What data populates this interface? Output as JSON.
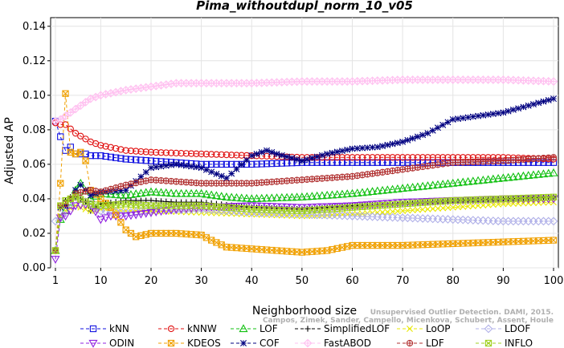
{
  "chart_data": {
    "type": "line",
    "title": "Pima_withoutdupl_norm_10_v05",
    "xlabel": "Neighborhood size",
    "ylabel": "Adjusted AP",
    "xlim": [
      1,
      100
    ],
    "ylim": [
      0,
      0.145
    ],
    "xticks": [
      1,
      10,
      20,
      30,
      40,
      50,
      60,
      70,
      80,
      90,
      100
    ],
    "yticks": [
      "0.00",
      "0.02",
      "0.04",
      "0.06",
      "0.08",
      "0.10",
      "0.12",
      "0.14"
    ],
    "legend_placement": "bottom",
    "watermark": [
      "Unsupervised Outlier Detection. DAMI, 2015.",
      "Campos, Zimek, Sander, Campello, Micenkova, Schubert, Assent, Houle"
    ],
    "series": [
      {
        "name": "kNN",
        "color": "#1010e0",
        "marker": "square",
        "dash": "4,3",
        "points": [
          [
            1,
            0.085
          ],
          [
            2,
            0.076
          ],
          [
            3,
            0.068
          ],
          [
            4,
            0.07
          ],
          [
            5,
            0.066
          ],
          [
            6,
            0.066
          ],
          [
            7,
            0.066
          ],
          [
            8,
            0.065
          ],
          [
            10,
            0.065
          ],
          [
            15,
            0.063
          ],
          [
            20,
            0.062
          ],
          [
            30,
            0.06
          ],
          [
            40,
            0.06
          ],
          [
            50,
            0.061
          ],
          [
            60,
            0.061
          ],
          [
            70,
            0.061
          ],
          [
            80,
            0.061
          ],
          [
            90,
            0.061
          ],
          [
            100,
            0.061
          ]
        ]
      },
      {
        "name": "kNNW",
        "color": "#e01010",
        "marker": "circle",
        "dash": "4,3",
        "points": [
          [
            1,
            0.084
          ],
          [
            2,
            0.083
          ],
          [
            3,
            0.083
          ],
          [
            5,
            0.078
          ],
          [
            8,
            0.073
          ],
          [
            10,
            0.071
          ],
          [
            15,
            0.068
          ],
          [
            20,
            0.067
          ],
          [
            30,
            0.066
          ],
          [
            40,
            0.065
          ],
          [
            50,
            0.064
          ],
          [
            60,
            0.064
          ],
          [
            70,
            0.064
          ],
          [
            80,
            0.064
          ],
          [
            90,
            0.064
          ],
          [
            100,
            0.063
          ]
        ]
      },
      {
        "name": "LOF",
        "color": "#10c010",
        "marker": "triangle-up",
        "dash": "4,3",
        "points": [
          [
            1,
            0.01
          ],
          [
            2,
            0.028
          ],
          [
            3,
            0.033
          ],
          [
            4,
            0.038
          ],
          [
            5,
            0.045
          ],
          [
            6,
            0.049
          ],
          [
            8,
            0.04
          ],
          [
            10,
            0.043
          ],
          [
            15,
            0.042
          ],
          [
            20,
            0.044
          ],
          [
            25,
            0.043
          ],
          [
            30,
            0.043
          ],
          [
            35,
            0.041
          ],
          [
            40,
            0.04
          ],
          [
            50,
            0.041
          ],
          [
            60,
            0.043
          ],
          [
            70,
            0.046
          ],
          [
            80,
            0.049
          ],
          [
            90,
            0.052
          ],
          [
            100,
            0.055
          ]
        ]
      },
      {
        "name": "SimplifiedLOF",
        "color": "#000000",
        "marker": "plus",
        "dash": "4,3",
        "points": [
          [
            1,
            0.01
          ],
          [
            2,
            0.035
          ],
          [
            3,
            0.039
          ],
          [
            4,
            0.041
          ],
          [
            5,
            0.041
          ],
          [
            6,
            0.04
          ],
          [
            7,
            0.038
          ],
          [
            8,
            0.033
          ],
          [
            10,
            0.037
          ],
          [
            15,
            0.039
          ],
          [
            20,
            0.039
          ],
          [
            25,
            0.038
          ],
          [
            30,
            0.038
          ],
          [
            40,
            0.035
          ],
          [
            50,
            0.034
          ],
          [
            60,
            0.036
          ],
          [
            70,
            0.037
          ],
          [
            80,
            0.039
          ],
          [
            90,
            0.04
          ],
          [
            100,
            0.041
          ]
        ]
      },
      {
        "name": "LoOP",
        "color": "#e8e800",
        "marker": "x",
        "dash": "4,3",
        "points": [
          [
            1,
            0.01
          ],
          [
            2,
            0.03
          ],
          [
            3,
            0.033
          ],
          [
            5,
            0.036
          ],
          [
            8,
            0.033
          ],
          [
            10,
            0.034
          ],
          [
            15,
            0.033
          ],
          [
            20,
            0.033
          ],
          [
            30,
            0.032
          ],
          [
            40,
            0.031
          ],
          [
            50,
            0.03
          ],
          [
            60,
            0.031
          ],
          [
            70,
            0.033
          ],
          [
            80,
            0.035
          ],
          [
            90,
            0.037
          ],
          [
            100,
            0.038
          ]
        ]
      },
      {
        "name": "LDOF",
        "color": "#b0b0e8",
        "marker": "diamond",
        "dash": "4,3",
        "points": [
          [
            1,
            0.027
          ],
          [
            2,
            0.029
          ],
          [
            3,
            0.033
          ],
          [
            5,
            0.041
          ],
          [
            8,
            0.037
          ],
          [
            10,
            0.033
          ],
          [
            15,
            0.032
          ],
          [
            20,
            0.033
          ],
          [
            30,
            0.034
          ],
          [
            40,
            0.032
          ],
          [
            50,
            0.031
          ],
          [
            60,
            0.03
          ],
          [
            70,
            0.029
          ],
          [
            80,
            0.028
          ],
          [
            90,
            0.027
          ],
          [
            100,
            0.027
          ]
        ]
      },
      {
        "name": "ODIN",
        "color": "#9020e0",
        "marker": "triangle-down",
        "dash": "4,3",
        "points": [
          [
            1,
            0.005
          ],
          [
            2,
            0.029
          ],
          [
            3,
            0.03
          ],
          [
            5,
            0.036
          ],
          [
            8,
            0.037
          ],
          [
            10,
            0.028
          ],
          [
            12,
            0.03
          ],
          [
            15,
            0.03
          ],
          [
            20,
            0.032
          ],
          [
            25,
            0.034
          ],
          [
            30,
            0.035
          ],
          [
            40,
            0.036
          ],
          [
            50,
            0.035
          ],
          [
            60,
            0.036
          ],
          [
            70,
            0.038
          ],
          [
            80,
            0.039
          ],
          [
            90,
            0.04
          ],
          [
            100,
            0.04
          ]
        ]
      },
      {
        "name": "KDEOS",
        "color": "#f0a000",
        "marker": "square-x",
        "dash": "4,3",
        "points": [
          [
            1,
            0.01
          ],
          [
            2,
            0.049
          ],
          [
            3,
            0.101
          ],
          [
            4,
            0.067
          ],
          [
            5,
            0.066
          ],
          [
            6,
            0.067
          ],
          [
            7,
            0.062
          ],
          [
            8,
            0.045
          ],
          [
            10,
            0.04
          ],
          [
            12,
            0.035
          ],
          [
            15,
            0.022
          ],
          [
            17,
            0.018
          ],
          [
            20,
            0.02
          ],
          [
            22,
            0.02
          ],
          [
            25,
            0.02
          ],
          [
            30,
            0.019
          ],
          [
            32,
            0.016
          ],
          [
            35,
            0.012
          ],
          [
            40,
            0.011
          ],
          [
            45,
            0.01
          ],
          [
            50,
            0.009
          ],
          [
            55,
            0.01
          ],
          [
            60,
            0.013
          ],
          [
            70,
            0.013
          ],
          [
            80,
            0.014
          ],
          [
            90,
            0.015
          ],
          [
            100,
            0.016
          ]
        ]
      },
      {
        "name": "COF",
        "color": "#000080",
        "marker": "asterisk",
        "dash": "4,3",
        "points": [
          [
            1,
            0.01
          ],
          [
            2,
            0.035
          ],
          [
            3,
            0.036
          ],
          [
            4,
            0.04
          ],
          [
            5,
            0.045
          ],
          [
            6,
            0.048
          ],
          [
            8,
            0.042
          ],
          [
            10,
            0.044
          ],
          [
            15,
            0.045
          ],
          [
            20,
            0.058
          ],
          [
            25,
            0.06
          ],
          [
            30,
            0.058
          ],
          [
            35,
            0.052
          ],
          [
            40,
            0.065
          ],
          [
            43,
            0.068
          ],
          [
            45,
            0.066
          ],
          [
            50,
            0.062
          ],
          [
            55,
            0.066
          ],
          [
            60,
            0.069
          ],
          [
            65,
            0.07
          ],
          [
            70,
            0.073
          ],
          [
            75,
            0.078
          ],
          [
            80,
            0.086
          ],
          [
            85,
            0.088
          ],
          [
            90,
            0.09
          ],
          [
            95,
            0.094
          ],
          [
            100,
            0.098
          ]
        ]
      },
      {
        "name": "FastABOD",
        "color": "#ffc0f0",
        "marker": "diamond-x",
        "dash": "4,3",
        "points": [
          [
            1,
            0.085
          ],
          [
            2,
            0.086
          ],
          [
            3,
            0.088
          ],
          [
            5,
            0.092
          ],
          [
            8,
            0.098
          ],
          [
            10,
            0.1
          ],
          [
            15,
            0.103
          ],
          [
            20,
            0.105
          ],
          [
            25,
            0.107
          ],
          [
            30,
            0.107
          ],
          [
            40,
            0.107
          ],
          [
            50,
            0.108
          ],
          [
            60,
            0.108
          ],
          [
            70,
            0.109
          ],
          [
            80,
            0.109
          ],
          [
            90,
            0.109
          ],
          [
            100,
            0.108
          ]
        ]
      },
      {
        "name": "LDF",
        "color": "#b03030",
        "marker": "circle-plus",
        "dash": "4,3",
        "points": [
          [
            1,
            0.01
          ],
          [
            2,
            0.036
          ],
          [
            3,
            0.037
          ],
          [
            5,
            0.043
          ],
          [
            8,
            0.045
          ],
          [
            10,
            0.044
          ],
          [
            15,
            0.048
          ],
          [
            20,
            0.051
          ],
          [
            30,
            0.049
          ],
          [
            40,
            0.049
          ],
          [
            50,
            0.051
          ],
          [
            60,
            0.053
          ],
          [
            70,
            0.057
          ],
          [
            80,
            0.061
          ],
          [
            90,
            0.062
          ],
          [
            100,
            0.064
          ]
        ]
      },
      {
        "name": "INFLO",
        "color": "#a0d020",
        "marker": "square-x",
        "dash": "4,3",
        "points": [
          [
            1,
            0.01
          ],
          [
            2,
            0.036
          ],
          [
            3,
            0.039
          ],
          [
            5,
            0.041
          ],
          [
            8,
            0.037
          ],
          [
            10,
            0.036
          ],
          [
            15,
            0.037
          ],
          [
            20,
            0.036
          ],
          [
            30,
            0.036
          ],
          [
            40,
            0.034
          ],
          [
            50,
            0.033
          ],
          [
            60,
            0.035
          ],
          [
            70,
            0.037
          ],
          [
            80,
            0.039
          ],
          [
            90,
            0.04
          ],
          [
            100,
            0.041
          ]
        ]
      }
    ]
  }
}
